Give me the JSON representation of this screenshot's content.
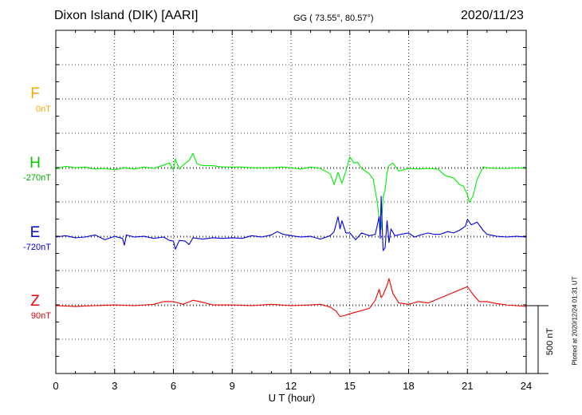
{
  "header": {
    "station": "Dixon Island (DIK)  [AARI]",
    "coords": "GG ( 73.55°,  80.57°)",
    "date": "2020/11/23"
  },
  "plotted_note": "Plotted at 2020/12/24 01:31  UT",
  "scale_label": "500 nT",
  "chart_data": {
    "type": "line",
    "xlabel": "U T (hour)",
    "xlim": [
      0,
      24
    ],
    "xticks": [
      "0",
      "3",
      "6",
      "9",
      "12",
      "15",
      "18",
      "21",
      "24"
    ],
    "scale_bar_nT": 500,
    "grid": true,
    "series": [
      {
        "name": "F",
        "baseline_label": "0nT",
        "color": "#ffa500",
        "has_data": false,
        "x": [],
        "y": []
      },
      {
        "name": "H",
        "baseline_label": "-270nT",
        "color": "#00ee00",
        "has_data": true,
        "x": [
          0,
          0.5,
          1,
          1.5,
          2,
          2.5,
          3,
          3.5,
          4,
          4.5,
          5,
          5.5,
          5.8,
          6,
          6.1,
          6.3,
          6.5,
          6.8,
          7,
          7.2,
          7.5,
          8,
          8.5,
          9,
          9.5,
          10,
          10.5,
          11,
          11.5,
          12,
          12.5,
          13,
          13.5,
          14,
          14.2,
          14.4,
          14.6,
          14.8,
          15,
          15.2,
          15.4,
          15.6,
          16,
          16.2,
          16.4,
          16.5,
          16.6,
          16.7,
          16.8,
          16.9,
          17,
          17.2,
          17.5,
          18,
          18.5,
          19,
          19.5,
          19.8,
          20,
          20.3,
          20.6,
          20.8,
          21,
          21.1,
          21.3,
          21.5,
          21.8,
          22,
          22.5,
          23,
          23.5,
          24
        ],
        "y": [
          -5,
          15,
          5,
          10,
          -5,
          0,
          -10,
          5,
          -5,
          10,
          0,
          25,
          40,
          -10,
          70,
          -5,
          25,
          60,
          110,
          35,
          20,
          20,
          10,
          10,
          10,
          5,
          5,
          5,
          10,
          5,
          -5,
          10,
          0,
          -40,
          -120,
          -30,
          -110,
          -20,
          85,
          40,
          45,
          0,
          -40,
          -80,
          -250,
          -370,
          -450,
          -210,
          -160,
          -30,
          20,
          40,
          -20,
          0,
          -5,
          0,
          -5,
          -45,
          -60,
          -70,
          -120,
          -130,
          -195,
          -250,
          -200,
          -80,
          10,
          5,
          0,
          0,
          5,
          0
        ]
      },
      {
        "name": "E",
        "baseline_label": "-720nT",
        "color": "#0000dd",
        "has_data": true,
        "x": [
          0,
          0.5,
          1,
          1.5,
          2,
          2.5,
          3,
          3.4,
          3.5,
          3.6,
          4,
          4.5,
          5,
          5.5,
          5.8,
          6,
          6.1,
          6.3,
          6.6,
          6.8,
          7,
          7.5,
          8,
          8.5,
          9,
          9.5,
          10,
          10.5,
          11,
          11.3,
          11.6,
          12,
          12.5,
          13,
          13.5,
          14,
          14.2,
          14.4,
          14.5,
          14.6,
          14.8,
          15,
          15.3,
          15.6,
          16,
          16.3,
          16.5,
          16.55,
          16.6,
          16.7,
          16.8,
          16.9,
          17,
          17.1,
          17.3,
          17.6,
          18,
          18.3,
          18.6,
          19,
          19.3,
          19.6,
          20,
          20.3,
          20.6,
          20.9,
          21,
          21.2,
          21.5,
          21.8,
          22,
          22.5,
          23,
          23.5,
          24
        ],
        "y": [
          0,
          10,
          -5,
          0,
          15,
          -20,
          5,
          -10,
          -60,
          15,
          0,
          5,
          -10,
          0,
          -25,
          -30,
          -90,
          -25,
          -30,
          -55,
          -5,
          -15,
          -5,
          -10,
          -5,
          -10,
          10,
          0,
          15,
          40,
          20,
          10,
          0,
          5,
          -15,
          10,
          40,
          150,
          60,
          120,
          30,
          30,
          -20,
          30,
          10,
          20,
          150,
          -10,
          300,
          -100,
          -80,
          120,
          -40,
          60,
          10,
          20,
          30,
          0,
          15,
          30,
          20,
          20,
          40,
          30,
          50,
          80,
          130,
          90,
          110,
          50,
          20,
          5,
          0,
          5,
          0
        ]
      },
      {
        "name": "Z",
        "baseline_label": "90nT",
        "color": "#ee0000",
        "has_data": true,
        "x": [
          0,
          1,
          2,
          3,
          4,
          5,
          5.5,
          6,
          6.5,
          7,
          7.5,
          8,
          9,
          10,
          11,
          12,
          13,
          13.5,
          14,
          14.3,
          14.5,
          14.8,
          15,
          15.5,
          16,
          16.3,
          16.5,
          16.6,
          16.7,
          16.9,
          17,
          17.2,
          17.5,
          18,
          18.5,
          19,
          19.5,
          20,
          20.5,
          21,
          21.3,
          21.6,
          22,
          22.5,
          23,
          23.5,
          24
        ],
        "y": [
          0,
          -5,
          0,
          5,
          0,
          10,
          30,
          30,
          10,
          40,
          25,
          5,
          5,
          0,
          10,
          0,
          5,
          10,
          -10,
          -40,
          -80,
          -70,
          -60,
          -40,
          -20,
          40,
          120,
          60,
          80,
          150,
          200,
          90,
          20,
          10,
          30,
          20,
          50,
          80,
          110,
          140,
          80,
          30,
          30,
          15,
          5,
          0,
          -5
        ]
      }
    ]
  }
}
